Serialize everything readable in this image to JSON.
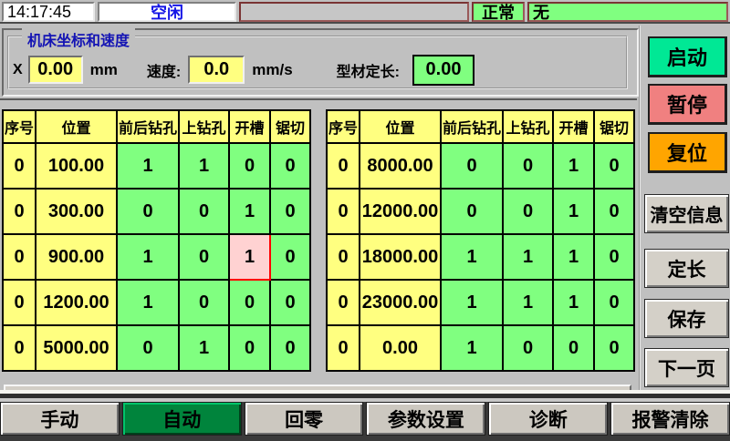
{
  "top_bar": {
    "time": "14:17:45",
    "machine_status": "空闲",
    "alarm_status": "正常",
    "alarm_message": "无"
  },
  "coords": {
    "group_title": "机床坐标和速度",
    "x_label": "X",
    "x_value": "0.00",
    "x_unit": "mm",
    "speed_label": "速度:",
    "speed_value": "0.0",
    "speed_unit": "mm/s",
    "length_label": "型材定长:",
    "length_value": "0.00"
  },
  "process_tables": {
    "headers": [
      "序号",
      "位置",
      "前后钻孔",
      "上钻孔",
      "开槽",
      "锯切"
    ],
    "left_rows": [
      [
        "0",
        "100.00",
        "1",
        "1",
        "0",
        "0"
      ],
      [
        "0",
        "300.00",
        "0",
        "0",
        "1",
        "0"
      ],
      [
        "0",
        "900.00",
        "1",
        "0",
        "1",
        "0"
      ],
      [
        "0",
        "1200.00",
        "1",
        "0",
        "0",
        "0"
      ],
      [
        "0",
        "5000.00",
        "0",
        "1",
        "0",
        "0"
      ]
    ],
    "right_rows": [
      [
        "0",
        "8000.00",
        "0",
        "0",
        "1",
        "0"
      ],
      [
        "0",
        "12000.00",
        "0",
        "0",
        "1",
        "0"
      ],
      [
        "0",
        "18000.00",
        "1",
        "1",
        "1",
        "0"
      ],
      [
        "0",
        "23000.00",
        "1",
        "1",
        "1",
        "0"
      ],
      [
        "0",
        "0.00",
        "1",
        "0",
        "0",
        "0"
      ]
    ],
    "selected_cell": {
      "table": "left",
      "row_index": 2,
      "col_index": 4
    }
  },
  "side_buttons": [
    {
      "id": "start",
      "label": "启动",
      "bg": "#00e895"
    },
    {
      "id": "pause",
      "label": "暂停",
      "bg": "#f08080"
    },
    {
      "id": "reset",
      "label": "复位",
      "bg": "#ffa500"
    },
    {
      "id": "clear-info",
      "label": "清空信息",
      "bg": ""
    },
    {
      "id": "fixed-length",
      "label": "定长",
      "bg": ""
    },
    {
      "id": "save",
      "label": "保存",
      "bg": ""
    },
    {
      "id": "next-page",
      "label": "下一页",
      "bg": ""
    }
  ],
  "bottom_tabs": [
    {
      "id": "manual",
      "label": "手动",
      "active": false
    },
    {
      "id": "auto",
      "label": "自动",
      "active": true
    },
    {
      "id": "home",
      "label": "回零",
      "active": false
    },
    {
      "id": "params",
      "label": "参数设置",
      "active": false
    },
    {
      "id": "diagnosis",
      "label": "诊断",
      "active": false
    },
    {
      "id": "alarm-clear",
      "label": "报警清除",
      "active": false
    }
  ],
  "colors": {
    "cell_yellow": "#ffff80",
    "cell_green": "#80ff80",
    "selected_cell_pink": "#ffd2d2",
    "selected_cell_border": "#ff0000",
    "status_green": "#80ff80",
    "active_tab_green": "#00843c",
    "start_green": "#00e895",
    "pause_red": "#f08080",
    "reset_orange": "#ffa500"
  }
}
